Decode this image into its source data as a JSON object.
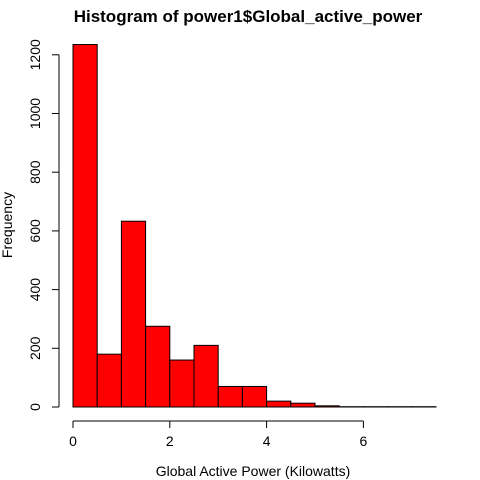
{
  "chart_data": {
    "type": "bar",
    "title": "Histogram of power1$Global_active_power",
    "xlabel": "Global Active Power (Kilowatts)",
    "ylabel": "Frequency",
    "bar_color": "#ff0000",
    "edge_color": "#000000",
    "bins": [
      {
        "start": 0.0,
        "end": 0.5,
        "count": 1235
      },
      {
        "start": 0.5,
        "end": 1.0,
        "count": 180
      },
      {
        "start": 1.0,
        "end": 1.5,
        "count": 633
      },
      {
        "start": 1.5,
        "end": 2.0,
        "count": 275
      },
      {
        "start": 2.0,
        "end": 2.5,
        "count": 160
      },
      {
        "start": 2.5,
        "end": 3.0,
        "count": 210
      },
      {
        "start": 3.0,
        "end": 3.5,
        "count": 70
      },
      {
        "start": 3.5,
        "end": 4.0,
        "count": 70
      },
      {
        "start": 4.0,
        "end": 4.5,
        "count": 20
      },
      {
        "start": 4.5,
        "end": 5.0,
        "count": 13
      },
      {
        "start": 5.0,
        "end": 5.5,
        "count": 4
      },
      {
        "start": 5.5,
        "end": 6.0,
        "count": 1
      },
      {
        "start": 6.0,
        "end": 6.5,
        "count": 1
      },
      {
        "start": 6.5,
        "end": 7.0,
        "count": 1
      },
      {
        "start": 7.0,
        "end": 7.5,
        "count": 1
      }
    ],
    "x_ticks": [
      "0",
      "2",
      "4",
      "6"
    ],
    "y_ticks": [
      "0",
      "200",
      "400",
      "600",
      "800",
      "1000",
      "1200"
    ],
    "xlim": [
      0,
      7.5
    ],
    "ylim": [
      0,
      1250
    ],
    "grid": false
  }
}
